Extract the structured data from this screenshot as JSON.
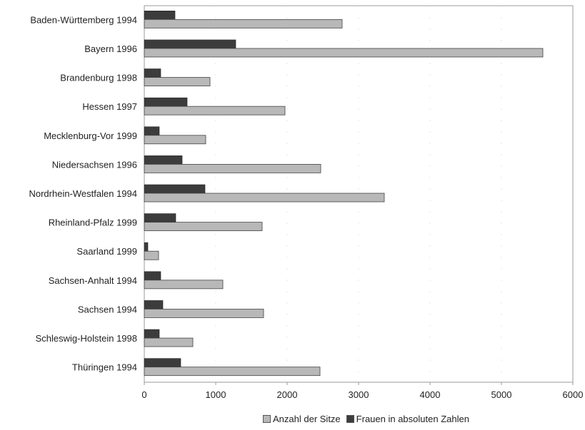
{
  "chart_data": {
    "type": "bar",
    "orientation": "horizontal",
    "categories": [
      "Baden-Württemberg 1994",
      "Bayern 1996",
      "Brandenburg 1998",
      "Hessen 1997",
      "Mecklenburg-Vor 1999",
      "Niedersachsen 1996",
      "Nordrhein-Westfalen 1994",
      "Rheinland-Pfalz 1999",
      "Saarland 1999",
      "Sachsen-Anhalt 1994",
      "Sachsen 1994",
      "Schleswig-Holstein 1998",
      "Thüringen 1994"
    ],
    "series": [
      {
        "name": "Anzahl der Sitze",
        "color": "#b8b8b8",
        "values": [
          2770,
          5580,
          920,
          1970,
          860,
          2470,
          3360,
          1650,
          200,
          1100,
          1670,
          680,
          2460
        ]
      },
      {
        "name": "Frauen in absoluten Zahlen",
        "color": "#3c3c3c",
        "values": [
          430,
          1280,
          230,
          600,
          210,
          530,
          850,
          440,
          50,
          230,
          260,
          210,
          510
        ]
      }
    ],
    "xlim": [
      0,
      6000
    ],
    "xticks": [
      "0",
      "1000",
      "2000",
      "3000",
      "4000",
      "5000",
      "6000"
    ],
    "legend_position": "bottom",
    "grid": false
  }
}
